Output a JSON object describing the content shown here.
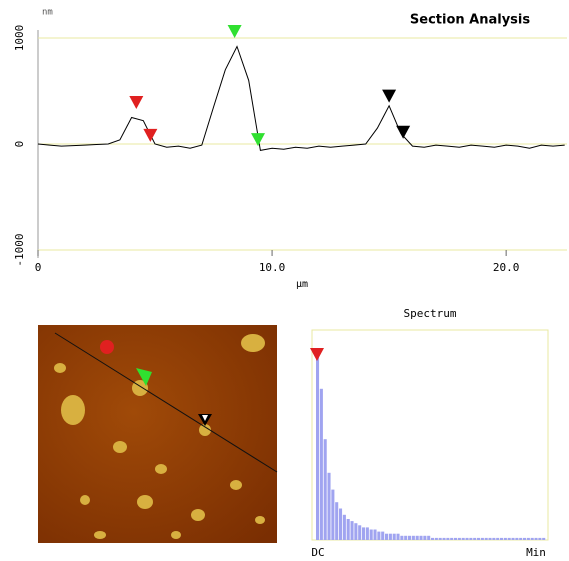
{
  "chart_data": [
    {
      "type": "line",
      "title": "Section Analysis",
      "ylabel": "nm",
      "xlabel": "µm",
      "x": [
        0,
        0.5,
        1,
        1.5,
        2,
        2.5,
        3,
        3.5,
        4,
        4.5,
        5,
        5.5,
        6,
        6.5,
        7,
        7.5,
        8,
        8.5,
        9,
        9.5,
        10,
        10.5,
        11,
        11.5,
        12,
        12.5,
        13,
        13.5,
        14,
        14.5,
        15,
        15.5,
        16,
        16.5,
        17,
        17.5,
        18,
        18.5,
        19,
        19.5,
        20,
        20.5,
        21,
        21.5,
        22,
        22.5
      ],
      "values": [
        0,
        -10,
        -20,
        -15,
        -10,
        -5,
        0,
        40,
        250,
        220,
        0,
        -30,
        -20,
        -40,
        -10,
        350,
        700,
        920,
        600,
        -60,
        -40,
        -50,
        -30,
        -40,
        -20,
        -30,
        -20,
        -10,
        0,
        150,
        360,
        100,
        -20,
        -30,
        -10,
        -20,
        -30,
        -10,
        -20,
        -30,
        -10,
        -20,
        -40,
        -10,
        -20,
        -10
      ],
      "color": "#000000",
      "xlim": [
        0,
        22.6
      ],
      "ylim": [
        -1000,
        1000
      ],
      "xticks": [
        0,
        {
          "value": 10,
          "label": "10.0"
        },
        {
          "value": 20,
          "label": "20.0"
        }
      ],
      "yticks": [
        -1000,
        0,
        1000
      ],
      "markers": [
        {
          "x": 4.2,
          "y": 330,
          "color": "#e02020"
        },
        {
          "x": 4.8,
          "y": 20,
          "color": "#e02020"
        },
        {
          "x": 8.4,
          "y": 1000,
          "color": "#30e030"
        },
        {
          "x": 9.4,
          "y": -20,
          "color": "#30e030"
        },
        {
          "x": 15.0,
          "y": 390,
          "color": "#000000"
        },
        {
          "x": 15.6,
          "y": 50,
          "color": "#000000"
        }
      ]
    },
    {
      "type": "bar",
      "title": "Spectrum",
      "x_start_label": "DC",
      "x_end_label": "Min",
      "values": [
        88,
        72,
        48,
        32,
        24,
        18,
        15,
        12,
        10,
        9,
        8,
        7,
        6,
        6,
        5,
        5,
        4,
        4,
        3,
        3,
        3,
        3,
        2,
        2,
        2,
        2,
        2,
        2,
        2,
        2,
        1,
        1,
        1,
        1,
        1,
        1,
        1,
        1,
        1,
        1,
        1,
        1,
        1,
        1,
        1,
        1,
        1,
        1,
        1,
        1,
        1,
        1,
        1,
        1,
        1,
        1,
        1,
        1,
        1,
        1
      ],
      "color": "#a0a4f0",
      "ylim": [
        0,
        100
      ]
    }
  ]
}
